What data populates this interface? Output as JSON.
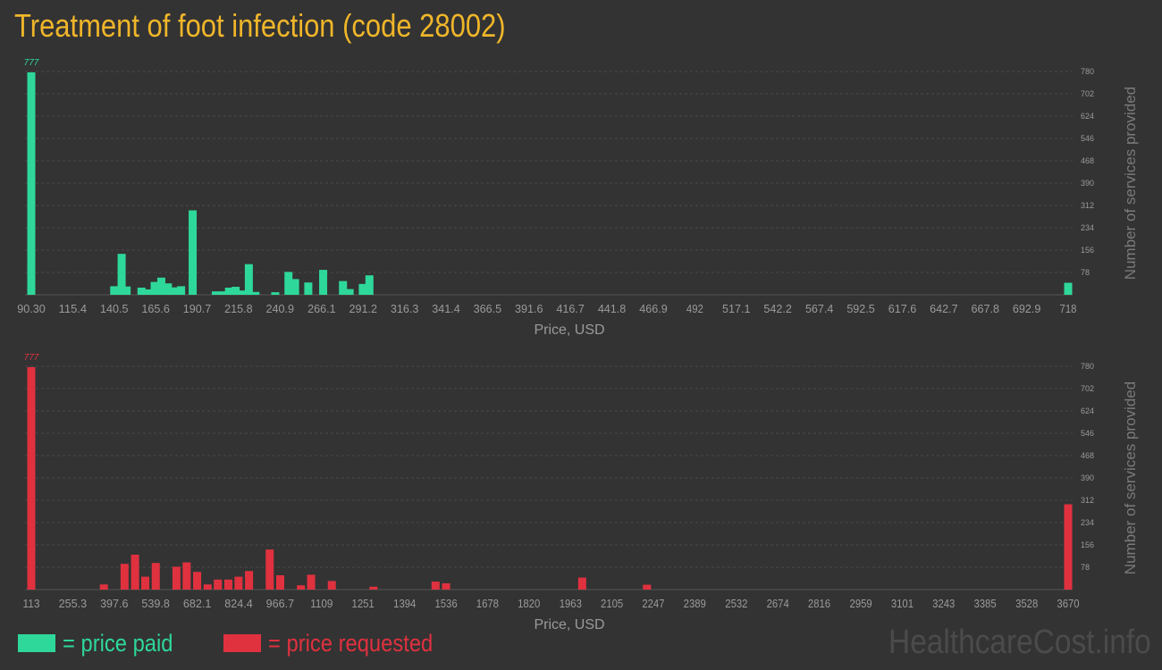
{
  "title": "Treatment of foot infection (code 28002)",
  "colors": {
    "background": "#333333",
    "title": "#f0b62a",
    "paid": "#2ed89a",
    "requested": "#e0313f",
    "grid": "#4a4a4a",
    "axis_text": "#9a9a9a"
  },
  "legend": {
    "paid_label": "= price paid",
    "requested_label": "= price requested"
  },
  "watermark": "HealthcareCost.info",
  "chart_data": [
    {
      "type": "bar",
      "series": [
        {
          "name": "price paid",
          "color": "#2ed89a"
        }
      ],
      "xlabel": "Price, USD",
      "ylabel": "Number of services provided",
      "ylim": [
        0,
        780
      ],
      "yticks": [
        78,
        156,
        234,
        312,
        390,
        468,
        546,
        624,
        702,
        780
      ],
      "xtick_labels": [
        "90.30",
        "115.4",
        "140.5",
        "165.6",
        "190.7",
        "215.8",
        "240.9",
        "266.1",
        "291.2",
        "316.3",
        "341.4",
        "366.5",
        "391.6",
        "416.7",
        "441.8",
        "466.9",
        "492",
        "517.1",
        "542.2",
        "567.4",
        "592.5",
        "617.6",
        "642.7",
        "667.8",
        "692.9",
        "718"
      ],
      "peak_label": "777",
      "bars": [
        {
          "x": 90.3,
          "y": 777
        },
        {
          "x": 140.5,
          "y": 30
        },
        {
          "x": 145,
          "y": 143
        },
        {
          "x": 148,
          "y": 29
        },
        {
          "x": 157,
          "y": 25
        },
        {
          "x": 161,
          "y": 19
        },
        {
          "x": 165,
          "y": 45
        },
        {
          "x": 169,
          "y": 60
        },
        {
          "x": 173,
          "y": 40
        },
        {
          "x": 177,
          "y": 26
        },
        {
          "x": 181,
          "y": 30
        },
        {
          "x": 188,
          "y": 295
        },
        {
          "x": 202,
          "y": 12
        },
        {
          "x": 206,
          "y": 12
        },
        {
          "x": 210,
          "y": 25
        },
        {
          "x": 214,
          "y": 28
        },
        {
          "x": 218,
          "y": 15
        },
        {
          "x": 222,
          "y": 107
        },
        {
          "x": 226,
          "y": 10
        },
        {
          "x": 238,
          "y": 9
        },
        {
          "x": 246,
          "y": 80
        },
        {
          "x": 250,
          "y": 55
        },
        {
          "x": 258,
          "y": 43
        },
        {
          "x": 267,
          "y": 87
        },
        {
          "x": 279,
          "y": 48
        },
        {
          "x": 283,
          "y": 20
        },
        {
          "x": 291,
          "y": 38
        },
        {
          "x": 295,
          "y": 68
        },
        {
          "x": 718,
          "y": 42
        }
      ]
    },
    {
      "type": "bar",
      "series": [
        {
          "name": "price requested",
          "color": "#e0313f"
        }
      ],
      "xlabel": "Price, USD",
      "ylabel": "Number of services provided",
      "ylim": [
        0,
        780
      ],
      "yticks": [
        78,
        156,
        234,
        312,
        390,
        468,
        546,
        624,
        702,
        780
      ],
      "xtick_labels": [
        "113",
        "255.3",
        "397.6",
        "539.8",
        "682.1",
        "824.4",
        "966.7",
        "1109",
        "1251",
        "1394",
        "1536",
        "1678",
        "1820",
        "1963",
        "2105",
        "2247",
        "2389",
        "2532",
        "2674",
        "2816",
        "2959",
        "3101",
        "3243",
        "3385",
        "3528",
        "3670"
      ],
      "peak_label": "777",
      "bars": [
        {
          "x": 113,
          "y": 777
        },
        {
          "x": 362,
          "y": 18
        },
        {
          "x": 433,
          "y": 90
        },
        {
          "x": 469,
          "y": 122
        },
        {
          "x": 504,
          "y": 45
        },
        {
          "x": 540,
          "y": 93
        },
        {
          "x": 611,
          "y": 80
        },
        {
          "x": 646,
          "y": 95
        },
        {
          "x": 682,
          "y": 62
        },
        {
          "x": 718,
          "y": 18
        },
        {
          "x": 753,
          "y": 35
        },
        {
          "x": 789,
          "y": 35
        },
        {
          "x": 824,
          "y": 45
        },
        {
          "x": 860,
          "y": 65
        },
        {
          "x": 931,
          "y": 140
        },
        {
          "x": 967,
          "y": 50
        },
        {
          "x": 1038,
          "y": 15
        },
        {
          "x": 1073,
          "y": 52
        },
        {
          "x": 1144,
          "y": 30
        },
        {
          "x": 1287,
          "y": 10
        },
        {
          "x": 1500,
          "y": 28
        },
        {
          "x": 1536,
          "y": 22
        },
        {
          "x": 2003,
          "y": 42
        },
        {
          "x": 2225,
          "y": 17
        },
        {
          "x": 3670,
          "y": 298
        }
      ]
    }
  ]
}
